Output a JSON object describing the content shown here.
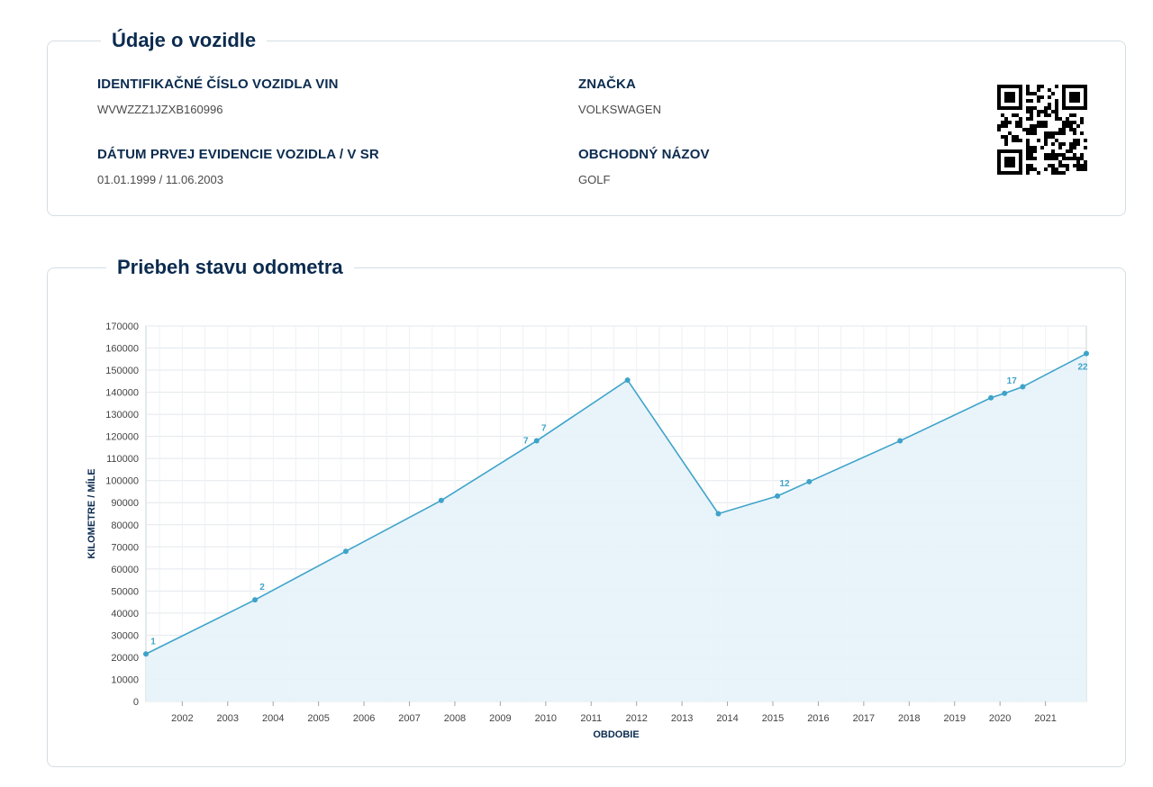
{
  "vehicle": {
    "title": "Údaje o vozidle",
    "vin_label": "IDENTIFIKAČNÉ ČÍSLO VOZIDLA VIN",
    "vin_value": "WVWZZZ1JZXB160996",
    "brand_label": "ZNAČKA",
    "brand_value": "VOLKSWAGEN",
    "reg_label": "DÁTUM PRVEJ EVIDENCIE VOZIDLA / V SR",
    "reg_value": "01.01.1999 / 11.06.2003",
    "model_label": "OBCHODNÝ NÁZOV",
    "model_value": "GOLF",
    "qr_icon": "qr-code-icon"
  },
  "odometer": {
    "title": "Priebeh stavu odometra"
  },
  "colors": {
    "title": "#0b2b4f",
    "line": "#3fa3c9",
    "fill": "#e6f3fa",
    "border": "#d4dee3"
  },
  "chart_data": {
    "type": "area",
    "xlabel": "OBDOBIE",
    "ylabel": "KILOMETRE / MÍLE",
    "ylim": [
      0,
      170000
    ],
    "yticks": [
      0,
      10000,
      20000,
      30000,
      40000,
      50000,
      60000,
      70000,
      80000,
      90000,
      100000,
      110000,
      120000,
      130000,
      140000,
      150000,
      160000,
      170000
    ],
    "xlim": [
      2001.2,
      2021.9
    ],
    "xticks": [
      "2002",
      "2003",
      "2004",
      "2005",
      "2006",
      "2007",
      "2008",
      "2009",
      "2010",
      "2011",
      "2012",
      "2013",
      "2014",
      "2015",
      "2016",
      "2017",
      "2018",
      "2019",
      "2020",
      "2021"
    ],
    "grid": true,
    "points": [
      {
        "x": 2001.2,
        "y": 21500,
        "label": "1"
      },
      {
        "x": 2003.6,
        "y": 46000,
        "label": "2"
      },
      {
        "x": 2005.6,
        "y": 68000,
        "label": ""
      },
      {
        "x": 2007.7,
        "y": 91000,
        "label": ""
      },
      {
        "x": 2009.8,
        "y": 118000,
        "label": "7"
      },
      {
        "x": 2011.8,
        "y": 145500,
        "label": ""
      },
      {
        "x": 2013.8,
        "y": 85000,
        "label": ""
      },
      {
        "x": 2015.1,
        "y": 93000,
        "label": "12"
      },
      {
        "x": 2015.8,
        "y": 99500,
        "label": ""
      },
      {
        "x": 2017.8,
        "y": 118000,
        "label": ""
      },
      {
        "x": 2019.8,
        "y": 137500,
        "label": ""
      },
      {
        "x": 2020.1,
        "y": 139500,
        "label": "17"
      },
      {
        "x": 2020.5,
        "y": 142500,
        "label": ""
      },
      {
        "x": 2021.9,
        "y": 157500,
        "label": "22"
      }
    ],
    "extra_labels": [
      {
        "x": 2009.8,
        "y": 118000,
        "label": "7"
      }
    ]
  }
}
